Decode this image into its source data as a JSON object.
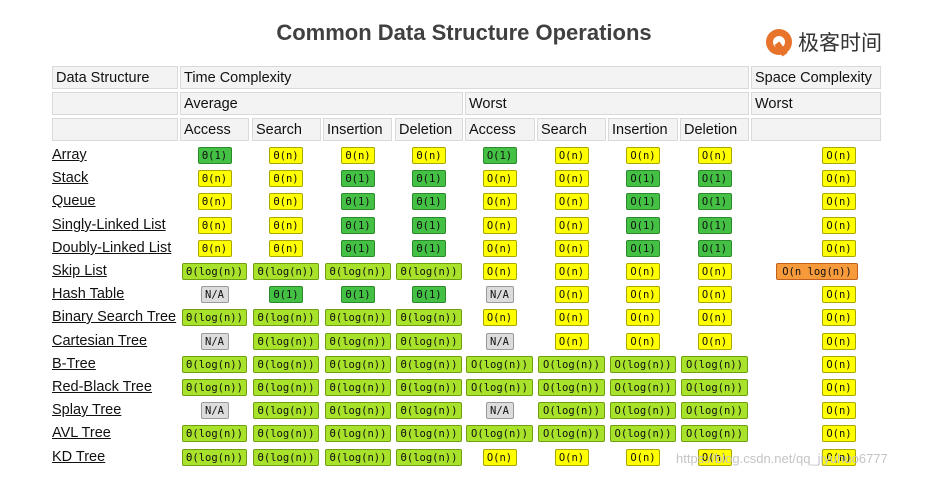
{
  "title": "Common Data Structure Operations",
  "logo": {
    "text": "极客时间",
    "icon": "geektime-logo-icon",
    "color": "#e8732b"
  },
  "headers": {
    "data_structure": "Data Structure",
    "time_complexity": "Time Complexity",
    "space_complexity": "Space Complexity",
    "average": "Average",
    "worst": "Worst",
    "space_worst": "Worst",
    "ops": [
      "Access",
      "Search",
      "Insertion",
      "Deletion",
      "Access",
      "Search",
      "Insertion",
      "Deletion"
    ]
  },
  "colors": {
    "green": "#44c144",
    "yellow": "#ffff00",
    "lime": "#a8e22a",
    "orange": "#f79a3c",
    "gray": "#dcdcdc"
  },
  "rows": [
    {
      "name": "Array",
      "cells": [
        [
          "Θ(1)",
          "green"
        ],
        [
          "Θ(n)",
          "yellow"
        ],
        [
          "Θ(n)",
          "yellow"
        ],
        [
          "Θ(n)",
          "yellow"
        ],
        [
          "O(1)",
          "green"
        ],
        [
          "O(n)",
          "yellow"
        ],
        [
          "O(n)",
          "yellow"
        ],
        [
          "O(n)",
          "yellow"
        ],
        [
          "O(n)",
          "yellow"
        ]
      ]
    },
    {
      "name": "Stack",
      "cells": [
        [
          "Θ(n)",
          "yellow"
        ],
        [
          "Θ(n)",
          "yellow"
        ],
        [
          "Θ(1)",
          "green"
        ],
        [
          "Θ(1)",
          "green"
        ],
        [
          "O(n)",
          "yellow"
        ],
        [
          "O(n)",
          "yellow"
        ],
        [
          "O(1)",
          "green"
        ],
        [
          "O(1)",
          "green"
        ],
        [
          "O(n)",
          "yellow"
        ]
      ]
    },
    {
      "name": "Queue",
      "cells": [
        [
          "Θ(n)",
          "yellow"
        ],
        [
          "Θ(n)",
          "yellow"
        ],
        [
          "Θ(1)",
          "green"
        ],
        [
          "Θ(1)",
          "green"
        ],
        [
          "O(n)",
          "yellow"
        ],
        [
          "O(n)",
          "yellow"
        ],
        [
          "O(1)",
          "green"
        ],
        [
          "O(1)",
          "green"
        ],
        [
          "O(n)",
          "yellow"
        ]
      ]
    },
    {
      "name": "Singly-Linked List",
      "cells": [
        [
          "Θ(n)",
          "yellow"
        ],
        [
          "Θ(n)",
          "yellow"
        ],
        [
          "Θ(1)",
          "green"
        ],
        [
          "Θ(1)",
          "green"
        ],
        [
          "O(n)",
          "yellow"
        ],
        [
          "O(n)",
          "yellow"
        ],
        [
          "O(1)",
          "green"
        ],
        [
          "O(1)",
          "green"
        ],
        [
          "O(n)",
          "yellow"
        ]
      ]
    },
    {
      "name": "Doubly-Linked List",
      "cells": [
        [
          "Θ(n)",
          "yellow"
        ],
        [
          "Θ(n)",
          "yellow"
        ],
        [
          "Θ(1)",
          "green"
        ],
        [
          "Θ(1)",
          "green"
        ],
        [
          "O(n)",
          "yellow"
        ],
        [
          "O(n)",
          "yellow"
        ],
        [
          "O(1)",
          "green"
        ],
        [
          "O(1)",
          "green"
        ],
        [
          "O(n)",
          "yellow"
        ]
      ]
    },
    {
      "name": "Skip List",
      "cells": [
        [
          "Θ(log(n))",
          "lime"
        ],
        [
          "Θ(log(n))",
          "lime"
        ],
        [
          "Θ(log(n))",
          "lime"
        ],
        [
          "Θ(log(n))",
          "lime"
        ],
        [
          "O(n)",
          "yellow"
        ],
        [
          "O(n)",
          "yellow"
        ],
        [
          "O(n)",
          "yellow"
        ],
        [
          "O(n)",
          "yellow"
        ],
        [
          "O(n log(n))",
          "orange"
        ]
      ]
    },
    {
      "name": "Hash Table",
      "cells": [
        [
          "N/A",
          "gray"
        ],
        [
          "Θ(1)",
          "green"
        ],
        [
          "Θ(1)",
          "green"
        ],
        [
          "Θ(1)",
          "green"
        ],
        [
          "N/A",
          "gray"
        ],
        [
          "O(n)",
          "yellow"
        ],
        [
          "O(n)",
          "yellow"
        ],
        [
          "O(n)",
          "yellow"
        ],
        [
          "O(n)",
          "yellow"
        ]
      ]
    },
    {
      "name": "Binary Search Tree",
      "cells": [
        [
          "Θ(log(n))",
          "lime"
        ],
        [
          "Θ(log(n))",
          "lime"
        ],
        [
          "Θ(log(n))",
          "lime"
        ],
        [
          "Θ(log(n))",
          "lime"
        ],
        [
          "O(n)",
          "yellow"
        ],
        [
          "O(n)",
          "yellow"
        ],
        [
          "O(n)",
          "yellow"
        ],
        [
          "O(n)",
          "yellow"
        ],
        [
          "O(n)",
          "yellow"
        ]
      ]
    },
    {
      "name": "Cartesian Tree",
      "cells": [
        [
          "N/A",
          "gray"
        ],
        [
          "Θ(log(n))",
          "lime"
        ],
        [
          "Θ(log(n))",
          "lime"
        ],
        [
          "Θ(log(n))",
          "lime"
        ],
        [
          "N/A",
          "gray"
        ],
        [
          "O(n)",
          "yellow"
        ],
        [
          "O(n)",
          "yellow"
        ],
        [
          "O(n)",
          "yellow"
        ],
        [
          "O(n)",
          "yellow"
        ]
      ]
    },
    {
      "name": "B-Tree",
      "cells": [
        [
          "Θ(log(n))",
          "lime"
        ],
        [
          "Θ(log(n))",
          "lime"
        ],
        [
          "Θ(log(n))",
          "lime"
        ],
        [
          "Θ(log(n))",
          "lime"
        ],
        [
          "O(log(n))",
          "lime"
        ],
        [
          "O(log(n))",
          "lime"
        ],
        [
          "O(log(n))",
          "lime"
        ],
        [
          "O(log(n))",
          "lime"
        ],
        [
          "O(n)",
          "yellow"
        ]
      ]
    },
    {
      "name": "Red-Black Tree",
      "cells": [
        [
          "Θ(log(n))",
          "lime"
        ],
        [
          "Θ(log(n))",
          "lime"
        ],
        [
          "Θ(log(n))",
          "lime"
        ],
        [
          "Θ(log(n))",
          "lime"
        ],
        [
          "O(log(n))",
          "lime"
        ],
        [
          "O(log(n))",
          "lime"
        ],
        [
          "O(log(n))",
          "lime"
        ],
        [
          "O(log(n))",
          "lime"
        ],
        [
          "O(n)",
          "yellow"
        ]
      ]
    },
    {
      "name": "Splay Tree",
      "cells": [
        [
          "N/A",
          "gray"
        ],
        [
          "Θ(log(n))",
          "lime"
        ],
        [
          "Θ(log(n))",
          "lime"
        ],
        [
          "Θ(log(n))",
          "lime"
        ],
        [
          "N/A",
          "gray"
        ],
        [
          "O(log(n))",
          "lime"
        ],
        [
          "O(log(n))",
          "lime"
        ],
        [
          "O(log(n))",
          "lime"
        ],
        [
          "O(n)",
          "yellow"
        ]
      ]
    },
    {
      "name": "AVL Tree",
      "cells": [
        [
          "Θ(log(n))",
          "lime"
        ],
        [
          "Θ(log(n))",
          "lime"
        ],
        [
          "Θ(log(n))",
          "lime"
        ],
        [
          "Θ(log(n))",
          "lime"
        ],
        [
          "O(log(n))",
          "lime"
        ],
        [
          "O(log(n))",
          "lime"
        ],
        [
          "O(log(n))",
          "lime"
        ],
        [
          "O(log(n))",
          "lime"
        ],
        [
          "O(n)",
          "yellow"
        ]
      ]
    },
    {
      "name": "KD Tree",
      "cells": [
        [
          "Θ(log(n))",
          "lime"
        ],
        [
          "Θ(log(n))",
          "lime"
        ],
        [
          "Θ(log(n))",
          "lime"
        ],
        [
          "Θ(log(n))",
          "lime"
        ],
        [
          "O(n)",
          "yellow"
        ],
        [
          "O(n)",
          "yellow"
        ],
        [
          "O(n)",
          "yellow"
        ],
        [
          "O(n)",
          "yellow"
        ],
        [
          "O(n)",
          "yellow"
        ]
      ]
    }
  ],
  "watermark": "https://blog.csdn.net/qq_jiyuhuo6777"
}
